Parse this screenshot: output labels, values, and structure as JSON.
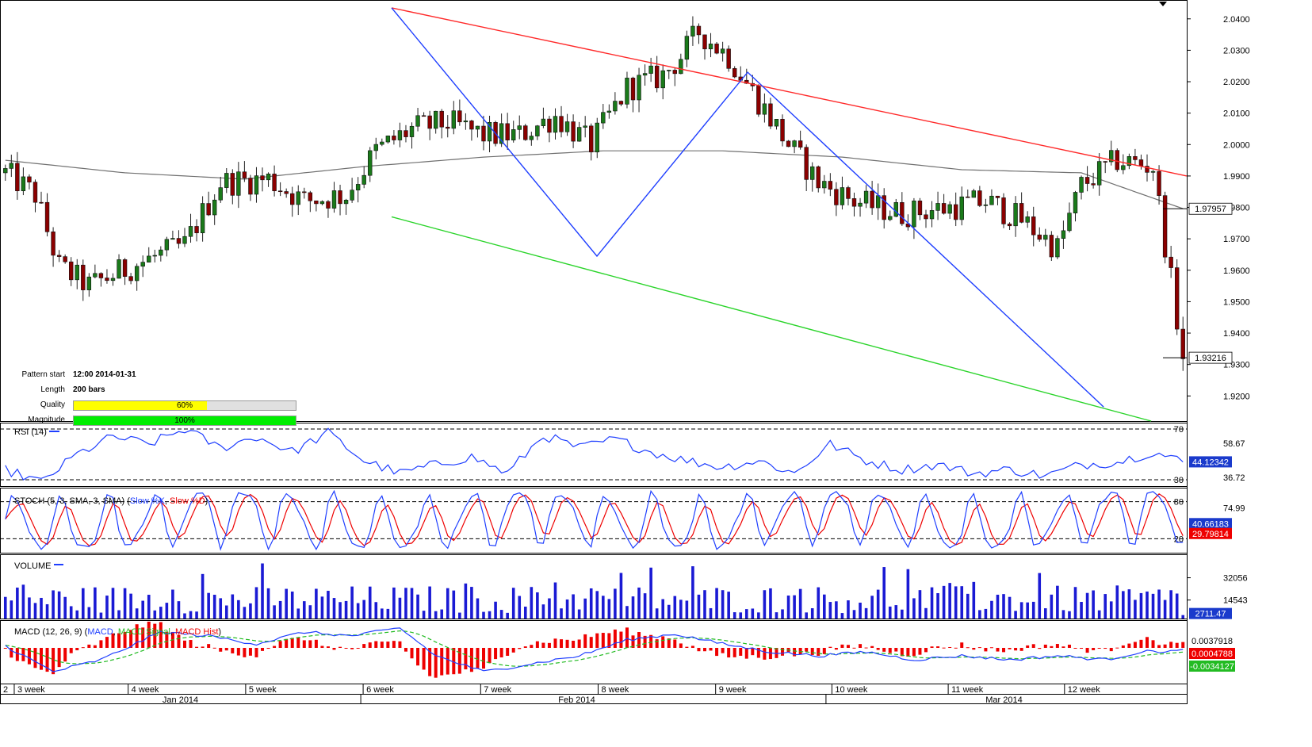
{
  "chart_data": {
    "type": "candlestick",
    "instrument_timeframe": "4h",
    "price": {
      "ylim": [
        1.912,
        2.046
      ],
      "yticks": [
        "2.0400",
        "2.0300",
        "2.0200",
        "2.0100",
        "2.0000",
        "1.9900",
        "1.9800",
        "1.9700",
        "1.9600",
        "1.9500",
        "1.9400",
        "1.9300",
        "1.9200"
      ],
      "last_price_label": "1.93216",
      "last_price": 1.93216,
      "ma_label": "1.97957",
      "ma_value": 1.97957,
      "candle_count": 198,
      "anchors": [
        {
          "i": 0,
          "p": 1.991
        },
        {
          "i": 5,
          "p": 1.984
        },
        {
          "i": 9,
          "p": 1.961
        },
        {
          "i": 14,
          "p": 1.955
        },
        {
          "i": 22,
          "p": 1.962
        },
        {
          "i": 30,
          "p": 1.968
        },
        {
          "i": 36,
          "p": 1.988
        },
        {
          "i": 44,
          "p": 1.989
        },
        {
          "i": 50,
          "p": 1.982
        },
        {
          "i": 57,
          "p": 1.984
        },
        {
          "i": 62,
          "p": 1.998
        },
        {
          "i": 68,
          "p": 2.005
        },
        {
          "i": 74,
          "p": 2.007
        },
        {
          "i": 80,
          "p": 2.003
        },
        {
          "i": 86,
          "p": 2.003
        },
        {
          "i": 92,
          "p": 2.009
        },
        {
          "i": 98,
          "p": 2.0
        },
        {
          "i": 104,
          "p": 2.018
        },
        {
          "i": 110,
          "p": 2.022
        },
        {
          "i": 113,
          "p": 2.028
        },
        {
          "i": 116,
          "p": 2.036
        },
        {
          "i": 121,
          "p": 2.028
        },
        {
          "i": 126,
          "p": 2.014
        },
        {
          "i": 131,
          "p": 2.0
        },
        {
          "i": 136,
          "p": 1.988
        },
        {
          "i": 142,
          "p": 1.982
        },
        {
          "i": 150,
          "p": 1.978
        },
        {
          "i": 158,
          "p": 1.98
        },
        {
          "i": 164,
          "p": 1.982
        },
        {
          "i": 170,
          "p": 1.976
        },
        {
          "i": 176,
          "p": 1.967
        },
        {
          "i": 180,
          "p": 1.987
        },
        {
          "i": 186,
          "p": 1.995
        },
        {
          "i": 192,
          "p": 1.993
        },
        {
          "i": 197,
          "p": 1.932
        }
      ],
      "gray_ma_anchors": [
        {
          "i": 0,
          "p": 1.995
        },
        {
          "i": 20,
          "p": 1.991
        },
        {
          "i": 40,
          "p": 1.989
        },
        {
          "i": 60,
          "p": 1.993
        },
        {
          "i": 80,
          "p": 1.996
        },
        {
          "i": 100,
          "p": 1.998
        },
        {
          "i": 120,
          "p": 1.998
        },
        {
          "i": 140,
          "p": 1.996
        },
        {
          "i": 160,
          "p": 1.992
        },
        {
          "i": 180,
          "p": 1.991
        },
        {
          "i": 197,
          "p": 1.9796
        }
      ]
    },
    "pattern_lines": {
      "red_upper": [
        [
          0.33,
          2.0435
        ],
        [
          1.0,
          1.99
        ]
      ],
      "green_lower": [
        [
          0.33,
          1.977
        ],
        [
          0.97,
          1.912
        ]
      ],
      "blue_zigzag": [
        [
          0.33,
          2.0435
        ],
        [
          0.503,
          1.9645
        ],
        [
          0.63,
          2.023
        ],
        [
          0.93,
          1.9165
        ]
      ]
    },
    "rsi": {
      "label": "RSI (14)",
      "levels": [
        "70",
        "30"
      ],
      "level_values": [
        70,
        30
      ],
      "tick_labels": [
        "58.67",
        "36.72"
      ],
      "current_label": "44.12342",
      "ylim": [
        25,
        75
      ],
      "anchors": [
        {
          "i": 0,
          "v": 38
        },
        {
          "i": 6,
          "v": 28
        },
        {
          "i": 12,
          "v": 50
        },
        {
          "i": 18,
          "v": 64
        },
        {
          "i": 24,
          "v": 58
        },
        {
          "i": 30,
          "v": 70
        },
        {
          "i": 36,
          "v": 55
        },
        {
          "i": 42,
          "v": 64
        },
        {
          "i": 48,
          "v": 52
        },
        {
          "i": 54,
          "v": 67
        },
        {
          "i": 60,
          "v": 45
        },
        {
          "i": 66,
          "v": 35
        },
        {
          "i": 72,
          "v": 42
        },
        {
          "i": 78,
          "v": 48
        },
        {
          "i": 84,
          "v": 35
        },
        {
          "i": 90,
          "v": 65
        },
        {
          "i": 96,
          "v": 55
        },
        {
          "i": 102,
          "v": 62
        },
        {
          "i": 108,
          "v": 52
        },
        {
          "i": 114,
          "v": 45
        },
        {
          "i": 120,
          "v": 40
        },
        {
          "i": 126,
          "v": 45
        },
        {
          "i": 132,
          "v": 35
        },
        {
          "i": 138,
          "v": 58
        },
        {
          "i": 144,
          "v": 45
        },
        {
          "i": 150,
          "v": 38
        },
        {
          "i": 156,
          "v": 42
        },
        {
          "i": 162,
          "v": 35
        },
        {
          "i": 168,
          "v": 38
        },
        {
          "i": 174,
          "v": 33
        },
        {
          "i": 180,
          "v": 42
        },
        {
          "i": 186,
          "v": 44
        },
        {
          "i": 192,
          "v": 52
        },
        {
          "i": 197,
          "v": 44
        }
      ]
    },
    "stoch": {
      "label_prefix": "STOCH (5, 3, SMA, 3, SMA) (",
      "label_k": "Slow %K",
      "label_sep": ", ",
      "label_d": "Slow %D",
      "label_suffix": ")",
      "levels": [
        "80",
        "20"
      ],
      "level_values": [
        80,
        20
      ],
      "tick_label": "74.99",
      "current_k_label": "40.66183",
      "current_d_label": "29.79814",
      "ylim": [
        0,
        100
      ],
      "oscillations": 26
    },
    "volume": {
      "label": "VOLUME",
      "tick_labels": [
        "32056",
        "14543"
      ],
      "tick_values": [
        32056,
        14543
      ],
      "current_label": "2711.47",
      "ylim": [
        0,
        48000
      ]
    },
    "macd": {
      "label_prefix": "MACD (12, 26, 9) (",
      "label_macd": "MACD",
      "label_sep": ", ",
      "label_signal": "MACD Signal",
      "label_hist": "MACD Hist",
      "label_suffix": ")",
      "tick_label": "0.0037918",
      "hist_label": "0.0004788",
      "macd_label": "-0.0034127",
      "ylim": [
        -0.009,
        0.007
      ],
      "anchors": [
        {
          "i": 0,
          "v": 0.0005
        },
        {
          "i": 8,
          "v": -0.006
        },
        {
          "i": 16,
          "v": -0.003
        },
        {
          "i": 26,
          "v": 0.004
        },
        {
          "i": 34,
          "v": 0.003
        },
        {
          "i": 42,
          "v": 0.001
        },
        {
          "i": 50,
          "v": 0.004
        },
        {
          "i": 58,
          "v": 0.003
        },
        {
          "i": 66,
          "v": 0.005
        },
        {
          "i": 72,
          "v": -0.002
        },
        {
          "i": 80,
          "v": -0.006
        },
        {
          "i": 88,
          "v": -0.004
        },
        {
          "i": 96,
          "v": -0.002
        },
        {
          "i": 104,
          "v": 0.002
        },
        {
          "i": 112,
          "v": 0.0035
        },
        {
          "i": 120,
          "v": 0.001
        },
        {
          "i": 128,
          "v": -0.001
        },
        {
          "i": 136,
          "v": -0.002
        },
        {
          "i": 144,
          "v": -0.001
        },
        {
          "i": 152,
          "v": -0.003
        },
        {
          "i": 160,
          "v": -0.002
        },
        {
          "i": 168,
          "v": -0.003
        },
        {
          "i": 176,
          "v": -0.002
        },
        {
          "i": 184,
          "v": -0.003
        },
        {
          "i": 190,
          "v": -0.001
        },
        {
          "i": 197,
          "v": -0.0007
        }
      ]
    },
    "time_axis": {
      "week_labels": [
        "2",
        "3 week",
        "4 week",
        "5 week",
        "6 week",
        "7 week",
        "8 week",
        "9 week",
        "10 week",
        "11 week",
        "12 week"
      ],
      "week_positions": [
        0.0,
        0.012,
        0.108,
        0.207,
        0.306,
        0.405,
        0.504,
        0.603,
        0.701,
        0.799,
        0.897
      ],
      "month_labels": [
        "Jan 2014",
        "Feb 2014",
        "Mar 2014"
      ],
      "month_positions": [
        0.152,
        0.486,
        0.846
      ]
    }
  },
  "pattern_panel": {
    "start_label": "Pattern start",
    "start_value": "12:00 2014-01-31",
    "length_label": "Length",
    "length_value": "200 bars",
    "quality_label": "Quality",
    "quality_value": "60%",
    "quality_fraction": 0.6,
    "magnitude_label": "Magnitude",
    "magnitude_value": "100%",
    "magnitude_fraction": 1.0
  },
  "colors": {
    "bull": "#1a7a1a",
    "bear": "#8b0000",
    "red_line": "#ff2a2a",
    "green_line": "#2ad42a",
    "blue_line": "#1f3fff",
    "ma": "#707070",
    "volume": "#1a1ad4",
    "quality_bar": "#ffff00",
    "magnitude_bar": "#00ee00",
    "label_bg": "#1a3acc"
  }
}
